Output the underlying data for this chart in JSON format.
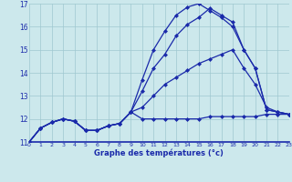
{
  "xlabel": "Graphe des températures (°c)",
  "xlim": [
    0,
    23
  ],
  "ylim": [
    11,
    17
  ],
  "yticks": [
    11,
    12,
    13,
    14,
    15,
    16,
    17
  ],
  "xticks": [
    0,
    1,
    2,
    3,
    4,
    5,
    6,
    7,
    8,
    9,
    10,
    11,
    12,
    13,
    14,
    15,
    16,
    17,
    18,
    19,
    20,
    21,
    22,
    23
  ],
  "bg_color": "#cce8ec",
  "grid_color": "#9fc8d0",
  "line_color": "#1a2aaa",
  "lines": [
    {
      "x": [
        0,
        1,
        2,
        3,
        4,
        5,
        6,
        7,
        8,
        9,
        10,
        11,
        12,
        13,
        14,
        15,
        16,
        17,
        18,
        19,
        20,
        21,
        22,
        23
      ],
      "y": [
        11.0,
        11.6,
        11.85,
        12.0,
        11.9,
        11.5,
        11.5,
        11.7,
        11.8,
        12.3,
        12.0,
        12.0,
        12.0,
        12.0,
        12.0,
        12.0,
        12.1,
        12.1,
        12.1,
        12.1,
        12.1,
        12.2,
        12.2,
        12.2
      ]
    },
    {
      "x": [
        0,
        1,
        2,
        3,
        4,
        5,
        6,
        7,
        8,
        9,
        10,
        11,
        12,
        13,
        14,
        15,
        16,
        17,
        18,
        19,
        20,
        21,
        22,
        23
      ],
      "y": [
        11.0,
        11.6,
        11.85,
        12.0,
        11.9,
        11.5,
        11.5,
        11.7,
        11.8,
        12.3,
        12.5,
        13.0,
        13.5,
        13.8,
        14.1,
        14.4,
        14.6,
        14.8,
        15.0,
        14.2,
        13.5,
        12.5,
        12.3,
        12.2
      ]
    },
    {
      "x": [
        0,
        1,
        2,
        3,
        4,
        5,
        6,
        7,
        8,
        9,
        10,
        11,
        12,
        13,
        14,
        15,
        16,
        17,
        18,
        19,
        20,
        21,
        22,
        23
      ],
      "y": [
        11.0,
        11.6,
        11.85,
        12.0,
        11.9,
        11.5,
        11.5,
        11.7,
        11.8,
        12.3,
        13.2,
        14.2,
        14.8,
        15.6,
        16.1,
        16.4,
        16.8,
        16.5,
        16.2,
        15.0,
        14.2,
        12.4,
        12.3,
        12.2
      ]
    },
    {
      "x": [
        0,
        1,
        2,
        3,
        4,
        5,
        6,
        7,
        8,
        9,
        10,
        11,
        12,
        13,
        14,
        15,
        16,
        17,
        18,
        19,
        20,
        21,
        22,
        23
      ],
      "y": [
        11.0,
        11.6,
        11.85,
        12.0,
        11.9,
        11.5,
        11.5,
        11.7,
        11.8,
        12.3,
        13.7,
        15.0,
        15.8,
        16.5,
        16.85,
        17.0,
        16.7,
        16.4,
        16.0,
        15.0,
        14.2,
        12.4,
        12.3,
        12.2
      ]
    }
  ]
}
